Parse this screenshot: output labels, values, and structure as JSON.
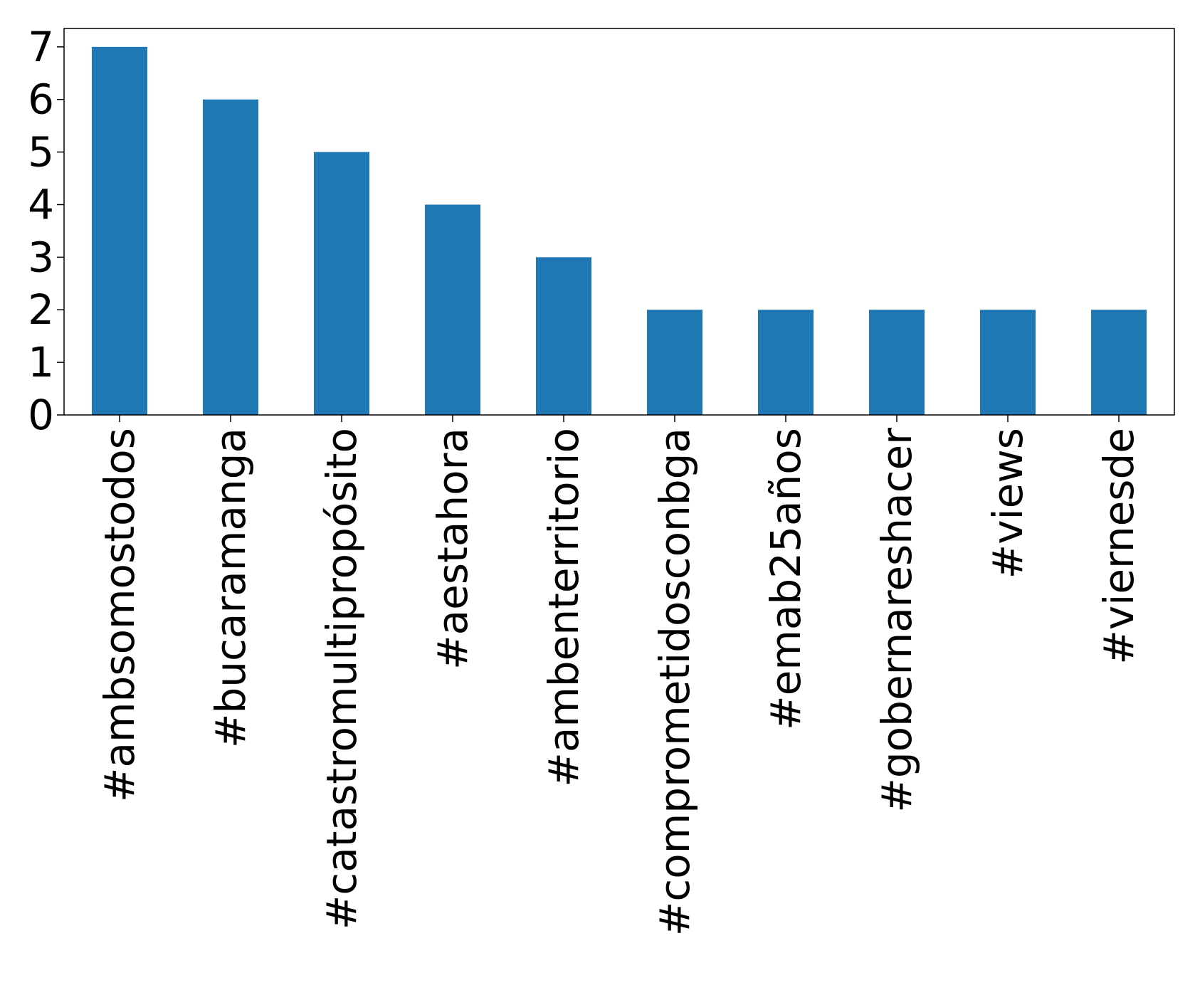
{
  "chart_data": {
    "type": "bar",
    "title": "",
    "xlabel": "",
    "ylabel": "",
    "categories": [
      "#ambsomostodos",
      "#bucaramanga",
      "#catastromultipropósito",
      "#aestahora",
      "#ambenterritorio",
      "#comprometidosconbga",
      "#emab25años",
      "#gobernareshacer",
      "#views",
      "#viernesde"
    ],
    "values": [
      7,
      6,
      5,
      4,
      3,
      2,
      2,
      2,
      2,
      2
    ],
    "ylim": [
      0,
      7.35
    ],
    "yticks": [
      "0",
      "1",
      "2",
      "3",
      "4",
      "5",
      "6",
      "7"
    ],
    "grid": false,
    "bar_color": "#1f77b4"
  }
}
